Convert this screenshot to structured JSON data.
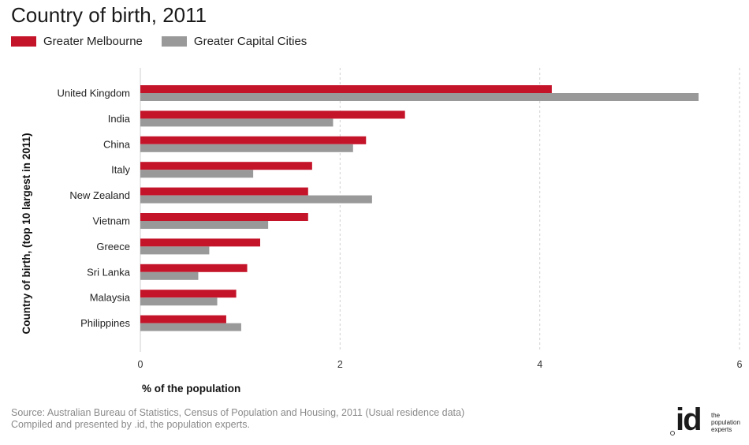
{
  "title": "Country of birth, 2011",
  "legend": [
    {
      "label": "Greater Melbourne",
      "color": "#c4142a"
    },
    {
      "label": "Greater Capital Cities",
      "color": "#999999"
    }
  ],
  "chart_data": {
    "type": "bar",
    "orientation": "horizontal",
    "title": "Country of birth, 2011",
    "xlabel": "% of the population",
    "ylabel": "Country of birth, (top 10 largest in 2011)",
    "categories": [
      "United Kingdom",
      "India",
      "China",
      "Italy",
      "New Zealand",
      "Vietnam",
      "Greece",
      "Sri Lanka",
      "Malaysia",
      "Philippines"
    ],
    "series": [
      {
        "name": "Greater Melbourne",
        "color": "#c4142a",
        "values": [
          4.12,
          2.65,
          2.26,
          1.72,
          1.68,
          1.68,
          1.2,
          1.07,
          0.96,
          0.86
        ]
      },
      {
        "name": "Greater Capital Cities",
        "color": "#999999",
        "values": [
          5.59,
          1.93,
          2.13,
          1.13,
          2.32,
          1.28,
          0.69,
          0.58,
          0.77,
          1.01
        ]
      }
    ],
    "xlim": [
      0,
      6
    ],
    "xticks": [
      "0",
      "2",
      "4",
      "6"
    ],
    "grid": true,
    "legend_position": "top-left"
  },
  "source": {
    "line1": "Source: Australian Bureau of Statistics, Census of Population and Housing, 2011 (Usual residence data)",
    "line2": "Compiled and presented by .id, the population experts."
  },
  "logo": {
    "text": "id",
    "tag": [
      "the",
      "population",
      "experts"
    ]
  }
}
